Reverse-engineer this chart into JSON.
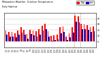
{
  "title": "Milwaukee Weather  Outdoor Temperature",
  "subtitle": "Daily High/Low",
  "bar_width": 0.4,
  "legend_high": "High",
  "legend_low": "Low",
  "color_high": "#ff0000",
  "color_low": "#0000bb",
  "background_color": "#ffffff",
  "ylim": [
    -20,
    100
  ],
  "yticks": [
    0,
    20,
    40,
    60,
    80
  ],
  "ytick_labels": [
    "0",
    "20",
    "40",
    "60",
    "80"
  ],
  "dates": [
    "1/1",
    "1/2",
    "1/3",
    "1/4",
    "1/5",
    "1/6",
    "1/7",
    "1/8",
    "1/9",
    "1/10",
    "1/11",
    "1/12",
    "1/13",
    "1/14",
    "1/15",
    "1/16",
    "1/17",
    "1/18",
    "1/19",
    "1/20",
    "1/21",
    "1/22",
    "1/23",
    "1/24",
    "1/25",
    "1/26",
    "1/27",
    "1/28",
    "1/29",
    "1/30"
  ],
  "highs": [
    38,
    34,
    33,
    28,
    38,
    50,
    40,
    26,
    42,
    38,
    36,
    44,
    55,
    62,
    36,
    20,
    22,
    24,
    50,
    52,
    18,
    28,
    50,
    92,
    88,
    62,
    60,
    58,
    50,
    52
  ],
  "lows": [
    24,
    18,
    16,
    14,
    24,
    32,
    25,
    10,
    27,
    22,
    18,
    25,
    38,
    44,
    18,
    4,
    5,
    7,
    30,
    34,
    5,
    14,
    32,
    70,
    66,
    44,
    43,
    40,
    34,
    36
  ],
  "dashed_lines": [
    22.5,
    24.5
  ]
}
